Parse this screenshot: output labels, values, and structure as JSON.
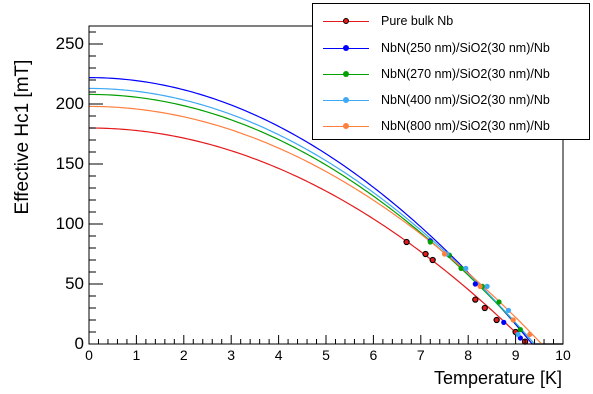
{
  "chart_data": {
    "type": "line",
    "xlabel": "Temperature [K]",
    "ylabel": "Effective Hc1 [mT]",
    "xlim": [
      0,
      10
    ],
    "ylim": [
      0,
      265
    ],
    "xticks": [
      "0",
      "1",
      "2",
      "3",
      "4",
      "5",
      "6",
      "7",
      "8",
      "9",
      "10"
    ],
    "yticks": [
      "0",
      "50",
      "100",
      "150",
      "200",
      "250"
    ],
    "grid": false,
    "legend_position": "top-right",
    "series": [
      {
        "name": "Pure bulk Nb",
        "color": "#e41a1c",
        "marker": "open-circle",
        "curve": {
          "h0": 180,
          "tc": 9.25
        },
        "points": [
          [
            6.7,
            85
          ],
          [
            7.1,
            75
          ],
          [
            7.25,
            70
          ],
          [
            8.15,
            37
          ],
          [
            8.35,
            30
          ],
          [
            8.6,
            20
          ],
          [
            9.0,
            10
          ],
          [
            9.2,
            2
          ]
        ]
      },
      {
        "name": "NbN(250 nm)/SiO2(30 nm)/Nb",
        "color": "#0000ff",
        "marker": "filled-circle",
        "curve": {
          "h0": 222,
          "tc": 9.35
        },
        "points": [
          [
            7.2,
            86
          ],
          [
            7.6,
            74
          ],
          [
            8.15,
            50
          ],
          [
            8.75,
            18
          ],
          [
            9.1,
            5
          ]
        ]
      },
      {
        "name": "NbN(270 nm)/SiO2(30 nm)/Nb",
        "color": "#00a000",
        "marker": "filled-circle",
        "curve": {
          "h0": 208,
          "tc": 9.4
        },
        "points": [
          [
            7.2,
            85
          ],
          [
            7.6,
            74
          ],
          [
            7.85,
            63
          ],
          [
            8.3,
            48
          ],
          [
            8.65,
            35
          ],
          [
            9.1,
            12
          ]
        ]
      },
      {
        "name": "NbN(400 nm)/SiO2(30 nm)/Nb",
        "color": "#3fa9f5",
        "marker": "filled-circle",
        "curve": {
          "h0": 213,
          "tc": 9.4
        },
        "points": [
          [
            7.55,
            75
          ],
          [
            7.95,
            63
          ],
          [
            8.4,
            48
          ],
          [
            8.85,
            28
          ],
          [
            9.05,
            8
          ]
        ]
      },
      {
        "name": "NbN(800 nm)/SiO2(30 nm)/Nb",
        "color": "#ff7f3f",
        "marker": "filled-circle",
        "curve": {
          "h0": 198,
          "tc": 9.55
        },
        "points": [
          [
            7.5,
            75
          ],
          [
            8.25,
            48
          ],
          [
            8.95,
            20
          ],
          [
            9.3,
            8
          ]
        ]
      }
    ]
  }
}
